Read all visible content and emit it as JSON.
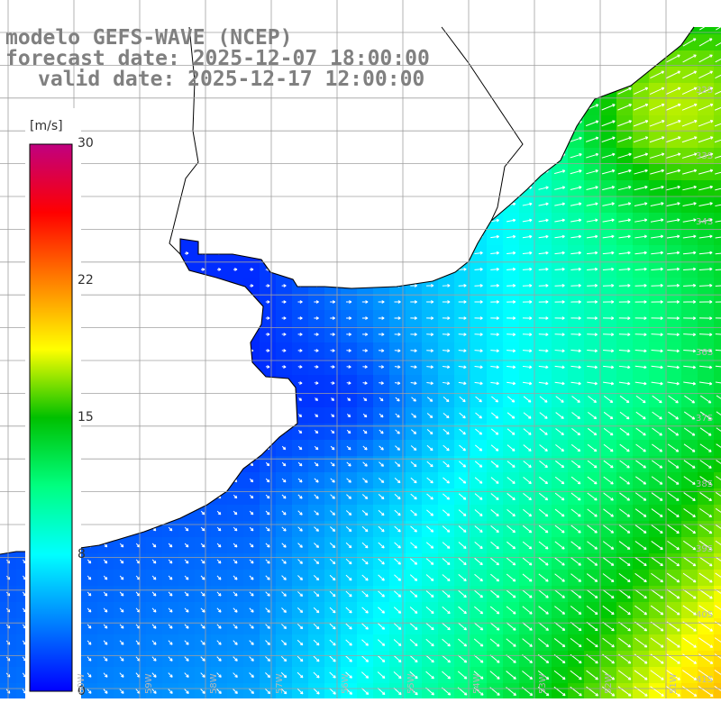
{
  "header": {
    "model_line": "modelo GEFS-WAVE (NCEP)",
    "forecast_line": "forecast date: 2025-12-07 18:00:00",
    "valid_line": "valid date: 2025-12-17 12:00:00"
  },
  "colorbar": {
    "unit": "[m/s]",
    "ticks": [
      "30",
      "22",
      "15",
      "8",
      "0"
    ],
    "tick_values": [
      30,
      22,
      15,
      8,
      0
    ],
    "colors": [
      "#0000ff",
      "#0080ff",
      "#00ffff",
      "#00ff80",
      "#00c000",
      "#ffff00",
      "#ff8000",
      "#ff0000",
      "#c00080"
    ]
  },
  "map": {
    "lat_labels": [
      "32S",
      "33S",
      "34S",
      "36S",
      "37S",
      "38S",
      "39S",
      "40S",
      "41S"
    ],
    "lon_labels": [
      "60W",
      "59W",
      "58W",
      "57W",
      "56W",
      "55W",
      "54W",
      "53W",
      "52W",
      "51W"
    ],
    "colors": {
      "land": "#ffffff",
      "coastline": "#000000",
      "grid": "#a0a0a0",
      "arrows": "#ffffff"
    }
  }
}
